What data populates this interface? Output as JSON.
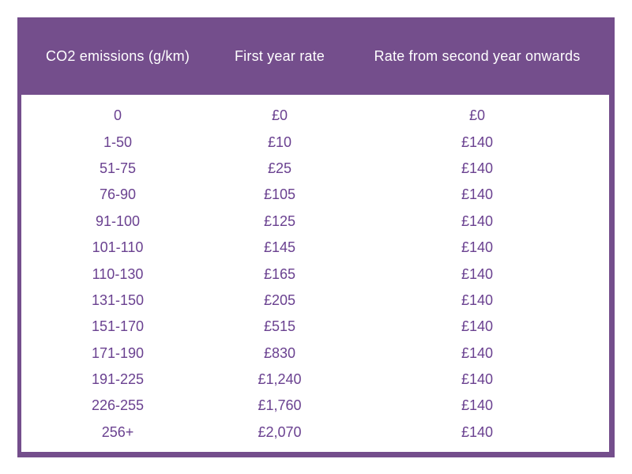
{
  "chart_data": {
    "type": "table",
    "columns": [
      "CO2 emissions (g/km)",
      "First year rate",
      "Rate from second year onwards"
    ],
    "rows": [
      [
        "0",
        "£0",
        "£0"
      ],
      [
        "1-50",
        "£10",
        "£140"
      ],
      [
        "51-75",
        "£25",
        "£140"
      ],
      [
        "76-90",
        "£105",
        "£140"
      ],
      [
        "91-100",
        "£125",
        "£140"
      ],
      [
        "101-110",
        "£145",
        "£140"
      ],
      [
        "110-130",
        "£165",
        "£140"
      ],
      [
        "131-150",
        "£205",
        "£140"
      ],
      [
        "151-170",
        "£515",
        "£140"
      ],
      [
        "171-190",
        "£830",
        "£140"
      ],
      [
        "191-225",
        "£1,240",
        "£140"
      ],
      [
        "226-255",
        "£1,760",
        "£140"
      ],
      [
        "256+",
        "£2,070",
        "£140"
      ]
    ],
    "layout_hints": {
      "header_position": "top",
      "grid": "off",
      "cell_alignment": "center"
    }
  },
  "colors": {
    "header_bg": "#744e8c",
    "border": "#744e8c",
    "header_text": "#ffffff",
    "body_bg": "#ffffff",
    "body_text": "#6a4190"
  }
}
